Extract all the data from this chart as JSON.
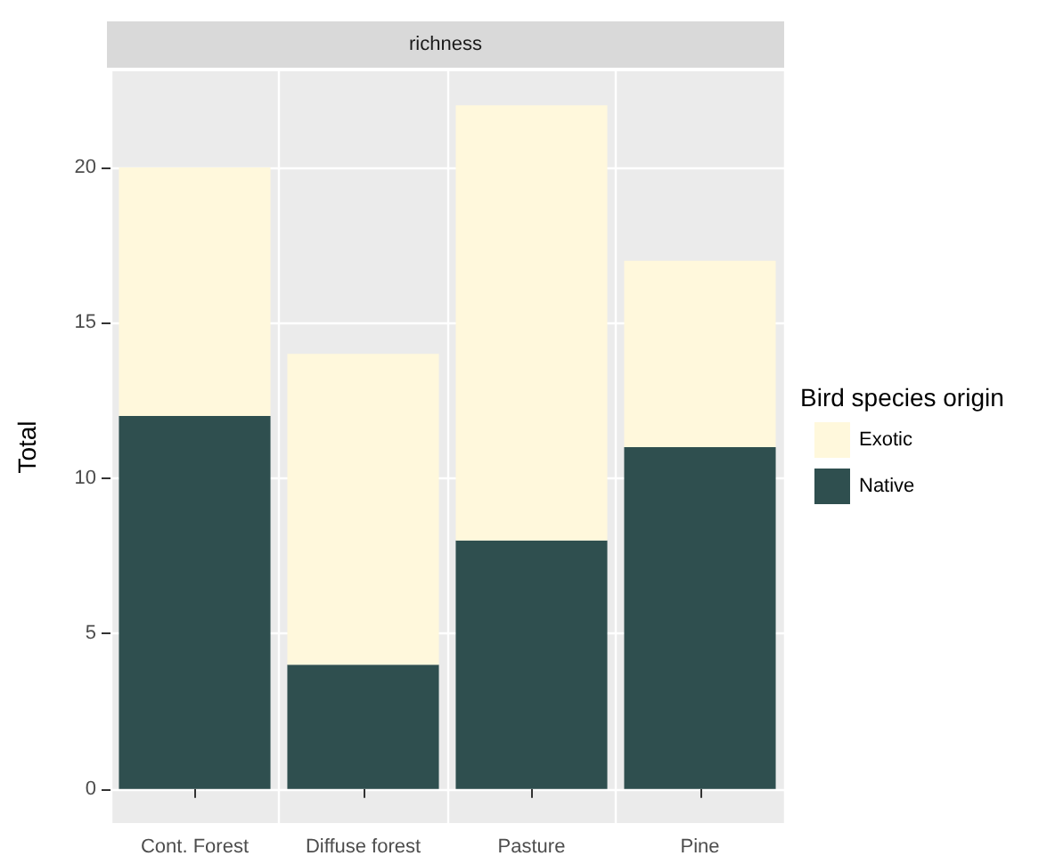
{
  "chart_data": {
    "type": "bar",
    "title": "richness",
    "ylabel": "Total",
    "legend_title": "Bird species origin",
    "categories": [
      "Cont. Forest",
      "Diffuse forest",
      "Pasture",
      "Pine"
    ],
    "series": [
      {
        "name": "Native",
        "color": "#2f4f4f",
        "values": [
          12,
          4,
          8,
          11
        ]
      },
      {
        "name": "Exotic",
        "color": "#fff8dc",
        "values": [
          8,
          10,
          14,
          6
        ]
      }
    ],
    "stacked": true,
    "ylim": [
      -1.1,
      23.1
    ],
    "yticks": [
      0,
      5,
      10,
      15,
      20
    ],
    "grid": true,
    "legend": "right"
  }
}
